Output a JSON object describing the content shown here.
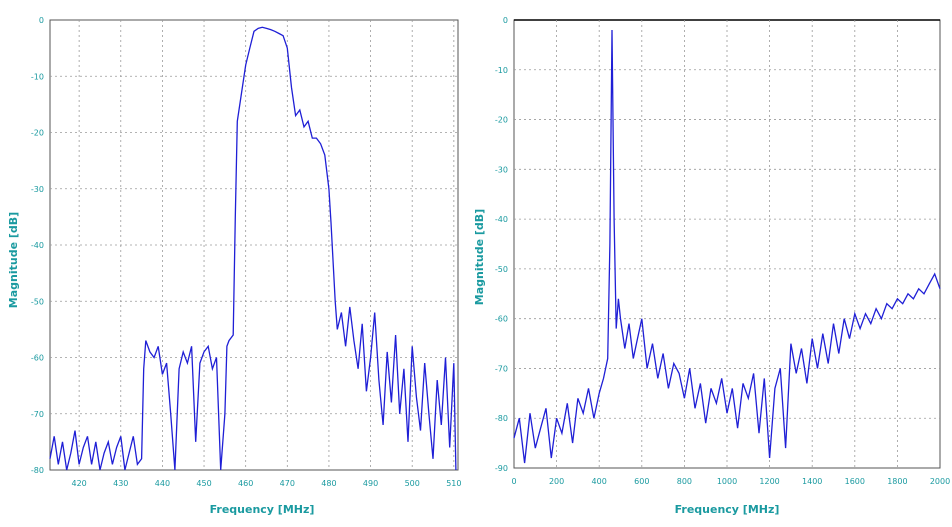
{
  "colors": {
    "trace": "#1f1fd6",
    "axis_text": "#1a9aa0",
    "grid": "#9a9a9a",
    "plot_bg": "#ffffff"
  },
  "chart_data": [
    {
      "type": "line",
      "xlabel": "Frequency [MHz]",
      "ylabel": "Magnitude [dB]",
      "xlim": [
        413,
        511
      ],
      "ylim": [
        -80,
        0
      ],
      "xticks": [
        420,
        430,
        440,
        450,
        460,
        470,
        480,
        490,
        500,
        510
      ],
      "xtick_labels": [
        "420",
        "430",
        "440",
        "450",
        "460",
        "470",
        "480",
        "490",
        "500",
        "510"
      ],
      "yticks": [
        0,
        -10,
        -20,
        -30,
        -40,
        -50,
        -60,
        -70,
        -80
      ],
      "ytick_labels": [
        "0",
        "-10",
        "-20",
        "-30",
        "-40",
        "-50",
        "-60",
        "-70",
        "-80"
      ],
      "grid": true,
      "series": [
        {
          "x": [
            413,
            414,
            415,
            416,
            417,
            418,
            419,
            420,
            421,
            422,
            423,
            424,
            425,
            426,
            427,
            428,
            429,
            430,
            431,
            432,
            433,
            434,
            435,
            435.5,
            436,
            437,
            438,
            439,
            440,
            441,
            442,
            443,
            444,
            445,
            446,
            447,
            448,
            449,
            450,
            451,
            452,
            453,
            454,
            455,
            455.5,
            456,
            457,
            457.5,
            458,
            459,
            460,
            461,
            462,
            463,
            464,
            465,
            466,
            467,
            468,
            469,
            470,
            471,
            472,
            473,
            474,
            475,
            476,
            477,
            478,
            479,
            480,
            480.5,
            481,
            481.5,
            482,
            483,
            484,
            485,
            486,
            487,
            488,
            489,
            490,
            491,
            492,
            493,
            494,
            495,
            496,
            497,
            498,
            499,
            500,
            501,
            502,
            503,
            504,
            505,
            506,
            507,
            508,
            509,
            510,
            510.5
          ],
          "y": [
            -78,
            -74,
            -79,
            -75,
            -80,
            -77,
            -73,
            -79,
            -76,
            -74,
            -79,
            -75,
            -80,
            -77,
            -75,
            -79,
            -76,
            -74,
            -80,
            -77,
            -74,
            -79,
            -78,
            -62,
            -57,
            -59,
            -60,
            -58,
            -63,
            -61,
            -70,
            -80,
            -62,
            -59,
            -61,
            -58,
            -75,
            -61,
            -59,
            -58,
            -62,
            -60,
            -80,
            -70,
            -58,
            -57,
            -56,
            -35,
            -18,
            -13,
            -8,
            -5,
            -2,
            -1.5,
            -1.3,
            -1.5,
            -1.7,
            -2.0,
            -2.4,
            -2.8,
            -5,
            -12,
            -17,
            -16,
            -19,
            -18,
            -21,
            -21,
            -22,
            -24,
            -30,
            -36,
            -43,
            -50,
            -55,
            -52,
            -58,
            -51,
            -57,
            -62,
            -54,
            -66,
            -60,
            -52,
            -64,
            -72,
            -59,
            -68,
            -56,
            -70,
            -62,
            -75,
            -58,
            -67,
            -73,
            -61,
            -70,
            -78,
            -64,
            -72,
            -60,
            -76,
            -61,
            -80
          ]
        }
      ]
    },
    {
      "type": "line",
      "xlabel": "Frequency [MHz]",
      "ylabel": "Magnitude [dB]",
      "xlim": [
        0,
        2000
      ],
      "ylim": [
        -90,
        0
      ],
      "xticks": [
        0,
        200,
        400,
        600,
        800,
        1000,
        1200,
        1400,
        1600,
        1800,
        2000
      ],
      "xtick_labels": [
        "0",
        "200",
        "400",
        "600",
        "800",
        "1000",
        "1200",
        "1400",
        "1600",
        "1800",
        "2000"
      ],
      "yticks": [
        0,
        -10,
        -20,
        -30,
        -40,
        -50,
        -60,
        -70,
        -80,
        -90
      ],
      "ytick_labels": [
        "0",
        "-10",
        "-20",
        "-30",
        "-40",
        "-50",
        "-60",
        "-70",
        "-80",
        "-90"
      ],
      "grid": true,
      "series": [
        {
          "x": [
            0,
            25,
            50,
            75,
            100,
            125,
            150,
            175,
            200,
            225,
            250,
            275,
            300,
            325,
            350,
            375,
            400,
            420,
            440,
            450,
            460,
            470,
            480,
            490,
            500,
            520,
            540,
            560,
            580,
            600,
            625,
            650,
            675,
            700,
            725,
            750,
            775,
            800,
            825,
            850,
            875,
            900,
            925,
            950,
            975,
            1000,
            1025,
            1050,
            1075,
            1100,
            1125,
            1150,
            1175,
            1200,
            1225,
            1250,
            1275,
            1300,
            1325,
            1350,
            1375,
            1400,
            1425,
            1450,
            1475,
            1500,
            1525,
            1550,
            1575,
            1600,
            1625,
            1650,
            1675,
            1700,
            1725,
            1750,
            1775,
            1800,
            1825,
            1850,
            1875,
            1900,
            1925,
            1950,
            1975,
            2000
          ],
          "y": [
            -84,
            -80,
            -89,
            -79,
            -86,
            -82,
            -78,
            -88,
            -80,
            -83,
            -77,
            -85,
            -76,
            -79,
            -74,
            -80,
            -75,
            -72,
            -68,
            -45,
            -2,
            -40,
            -62,
            -56,
            -60,
            -66,
            -61,
            -68,
            -64,
            -60,
            -70,
            -65,
            -72,
            -67,
            -74,
            -69,
            -71,
            -76,
            -70,
            -78,
            -73,
            -81,
            -74,
            -77,
            -72,
            -79,
            -74,
            -82,
            -73,
            -76,
            -71,
            -83,
            -72,
            -88,
            -74,
            -70,
            -86,
            -65,
            -71,
            -66,
            -73,
            -64,
            -70,
            -63,
            -69,
            -61,
            -67,
            -60,
            -64,
            -59,
            -62,
            -59,
            -61,
            -58,
            -60,
            -57,
            -58,
            -56,
            -57,
            -55,
            -56,
            -54,
            -55,
            -53,
            -51,
            -54
          ]
        }
      ]
    }
  ]
}
